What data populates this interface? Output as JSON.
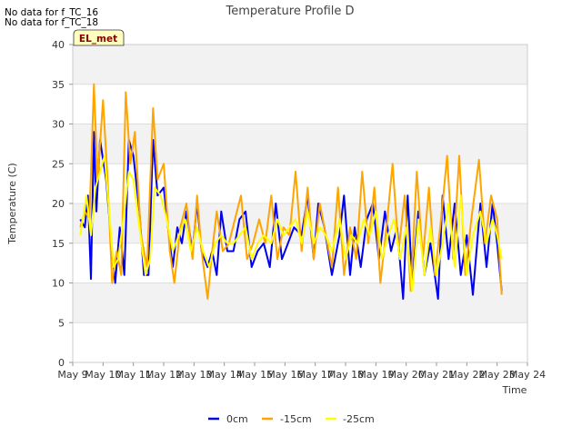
{
  "no_data_messages": [
    "No data for f_TC_16",
    "No data for f_TC_18"
  ],
  "badge_label": "EL_met",
  "colors": {
    "0cm": "#0000ee",
    "-15cm": "#ffa500",
    "-25cm": "#ffff00",
    "badge_bg": "#ffffc0",
    "badge_text": "#8b0000"
  },
  "chart_data": {
    "type": "line",
    "title": "Temperature Profile D",
    "xlabel": "Time",
    "ylabel": "Temperature (C)",
    "xlim": [
      0,
      15
    ],
    "ylim": [
      0,
      40
    ],
    "yticks": [
      0,
      5,
      10,
      15,
      20,
      25,
      30,
      35,
      40
    ],
    "xtick_labels": [
      "May 9",
      "May 10",
      "May 11",
      "May 12",
      "May 13",
      "May 14",
      "May 15",
      "May 16",
      "May 17",
      "May 18",
      "May 19",
      "May 20",
      "May 21",
      "May 22",
      "May 23",
      "May 24"
    ],
    "grid": true,
    "legend_position": "bottom-center",
    "x_units_note": "x is days since May 9 00:00",
    "series": [
      {
        "name": "0cm",
        "color": "#0000ee",
        "points": [
          [
            0.25,
            18
          ],
          [
            0.4,
            17
          ],
          [
            0.5,
            21
          ],
          [
            0.6,
            10.5
          ],
          [
            0.7,
            29
          ],
          [
            0.78,
            19
          ],
          [
            0.9,
            28
          ],
          [
            1.1,
            23
          ],
          [
            1.3,
            14
          ],
          [
            1.4,
            10
          ],
          [
            1.55,
            17
          ],
          [
            1.7,
            11
          ],
          [
            1.85,
            28
          ],
          [
            2.0,
            26
          ],
          [
            2.2,
            19
          ],
          [
            2.35,
            11
          ],
          [
            2.5,
            11
          ],
          [
            2.65,
            28
          ],
          [
            2.8,
            21
          ],
          [
            3.0,
            22
          ],
          [
            3.2,
            15
          ],
          [
            3.3,
            12
          ],
          [
            3.45,
            17
          ],
          [
            3.6,
            15
          ],
          [
            3.75,
            19
          ],
          [
            3.95,
            14
          ],
          [
            4.1,
            20
          ],
          [
            4.25,
            14
          ],
          [
            4.45,
            12
          ],
          [
            4.6,
            14
          ],
          [
            4.75,
            11
          ],
          [
            4.9,
            19
          ],
          [
            5.1,
            14
          ],
          [
            5.3,
            14
          ],
          [
            5.5,
            18
          ],
          [
            5.7,
            19
          ],
          [
            5.9,
            12
          ],
          [
            6.1,
            14
          ],
          [
            6.3,
            15
          ],
          [
            6.5,
            12
          ],
          [
            6.7,
            20
          ],
          [
            6.9,
            13
          ],
          [
            7.1,
            15
          ],
          [
            7.3,
            17
          ],
          [
            7.55,
            16
          ],
          [
            7.75,
            21
          ],
          [
            7.95,
            13
          ],
          [
            8.1,
            20
          ],
          [
            8.3,
            17
          ],
          [
            8.55,
            11
          ],
          [
            8.8,
            16
          ],
          [
            8.95,
            21
          ],
          [
            9.15,
            11
          ],
          [
            9.3,
            17
          ],
          [
            9.5,
            12
          ],
          [
            9.7,
            18
          ],
          [
            9.9,
            20
          ],
          [
            10.1,
            13
          ],
          [
            10.3,
            19
          ],
          [
            10.5,
            14
          ],
          [
            10.7,
            17
          ],
          [
            10.9,
            8
          ],
          [
            11.05,
            21
          ],
          [
            11.2,
            10
          ],
          [
            11.4,
            19
          ],
          [
            11.6,
            11
          ],
          [
            11.8,
            15
          ],
          [
            12.05,
            8
          ],
          [
            12.2,
            21
          ],
          [
            12.4,
            13
          ],
          [
            12.6,
            20
          ],
          [
            12.8,
            11
          ],
          [
            13.0,
            16
          ],
          [
            13.2,
            8.5
          ],
          [
            13.45,
            20
          ],
          [
            13.65,
            12
          ],
          [
            13.85,
            20
          ],
          [
            14.0,
            15
          ],
          [
            14.15,
            9
          ]
        ]
      },
      {
        "name": "-15cm",
        "color": "#ffa500",
        "points": [
          [
            0.25,
            17
          ],
          [
            0.4,
            19
          ],
          [
            0.55,
            18
          ],
          [
            0.7,
            35
          ],
          [
            0.82,
            23
          ],
          [
            1.0,
            33
          ],
          [
            1.15,
            23
          ],
          [
            1.3,
            10
          ],
          [
            1.45,
            14
          ],
          [
            1.6,
            11
          ],
          [
            1.75,
            34
          ],
          [
            1.9,
            25
          ],
          [
            2.05,
            29
          ],
          [
            2.25,
            16
          ],
          [
            2.45,
            12
          ],
          [
            2.65,
            32
          ],
          [
            2.8,
            23
          ],
          [
            3.0,
            25
          ],
          [
            3.2,
            14
          ],
          [
            3.35,
            10
          ],
          [
            3.55,
            17
          ],
          [
            3.75,
            20
          ],
          [
            3.95,
            13
          ],
          [
            4.1,
            21
          ],
          [
            4.25,
            14
          ],
          [
            4.45,
            8
          ],
          [
            4.6,
            14
          ],
          [
            4.75,
            19
          ],
          [
            4.95,
            14
          ],
          [
            5.15,
            15
          ],
          [
            5.35,
            18
          ],
          [
            5.55,
            21
          ],
          [
            5.75,
            13
          ],
          [
            5.95,
            15
          ],
          [
            6.15,
            18
          ],
          [
            6.35,
            15
          ],
          [
            6.55,
            21
          ],
          [
            6.75,
            13
          ],
          [
            6.95,
            17
          ],
          [
            7.15,
            16
          ],
          [
            7.35,
            24
          ],
          [
            7.55,
            14
          ],
          [
            7.75,
            22
          ],
          [
            7.95,
            13
          ],
          [
            8.15,
            20
          ],
          [
            8.35,
            16
          ],
          [
            8.55,
            12
          ],
          [
            8.75,
            22
          ],
          [
            8.95,
            11
          ],
          [
            9.15,
            17
          ],
          [
            9.35,
            13
          ],
          [
            9.55,
            24
          ],
          [
            9.75,
            15
          ],
          [
            9.95,
            22
          ],
          [
            10.15,
            10
          ],
          [
            10.35,
            17
          ],
          [
            10.55,
            25
          ],
          [
            10.75,
            14
          ],
          [
            10.95,
            21
          ],
          [
            11.15,
            9
          ],
          [
            11.35,
            24
          ],
          [
            11.55,
            13
          ],
          [
            11.75,
            22
          ],
          [
            11.95,
            11
          ],
          [
            12.15,
            18
          ],
          [
            12.35,
            26
          ],
          [
            12.55,
            13
          ],
          [
            12.75,
            26
          ],
          [
            12.95,
            11
          ],
          [
            13.15,
            18
          ],
          [
            13.4,
            25.5
          ],
          [
            13.6,
            15
          ],
          [
            13.8,
            21
          ],
          [
            14.0,
            18
          ],
          [
            14.15,
            8.5
          ]
        ]
      },
      {
        "name": "-25cm",
        "color": "#ffff00",
        "points": [
          [
            0.25,
            16
          ],
          [
            0.45,
            21
          ],
          [
            0.6,
            16
          ],
          [
            0.75,
            22
          ],
          [
            0.9,
            24
          ],
          [
            1.05,
            26
          ],
          [
            1.2,
            19
          ],
          [
            1.35,
            12
          ],
          [
            1.5,
            13
          ],
          [
            1.7,
            19
          ],
          [
            1.85,
            24
          ],
          [
            2.0,
            23
          ],
          [
            2.2,
            17
          ],
          [
            2.4,
            11
          ],
          [
            2.55,
            13
          ],
          [
            2.7,
            22
          ],
          [
            2.9,
            21
          ],
          [
            3.1,
            18
          ],
          [
            3.3,
            14
          ],
          [
            3.5,
            16
          ],
          [
            3.7,
            18
          ],
          [
            3.9,
            14
          ],
          [
            4.1,
            17
          ],
          [
            4.3,
            14
          ],
          [
            4.5,
            12
          ],
          [
            4.7,
            15
          ],
          [
            4.9,
            16
          ],
          [
            5.1,
            15
          ],
          [
            5.3,
            15
          ],
          [
            5.5,
            16
          ],
          [
            5.7,
            17
          ],
          [
            5.9,
            13
          ],
          [
            6.1,
            15
          ],
          [
            6.3,
            16
          ],
          [
            6.55,
            15
          ],
          [
            6.75,
            18
          ],
          [
            6.95,
            16
          ],
          [
            7.15,
            17
          ],
          [
            7.35,
            18
          ],
          [
            7.55,
            15
          ],
          [
            7.75,
            19
          ],
          [
            7.95,
            15
          ],
          [
            8.15,
            17
          ],
          [
            8.35,
            16
          ],
          [
            8.55,
            14
          ],
          [
            8.8,
            18
          ],
          [
            9.0,
            13
          ],
          [
            9.2,
            16
          ],
          [
            9.4,
            15
          ],
          [
            9.6,
            18
          ],
          [
            9.8,
            16
          ],
          [
            10.0,
            19
          ],
          [
            10.2,
            13
          ],
          [
            10.4,
            16
          ],
          [
            10.6,
            18
          ],
          [
            10.8,
            13
          ],
          [
            11.0,
            17
          ],
          [
            11.2,
            9
          ],
          [
            11.4,
            18
          ],
          [
            11.6,
            11
          ],
          [
            11.8,
            17
          ],
          [
            12.0,
            11
          ],
          [
            12.2,
            15
          ],
          [
            12.4,
            20
          ],
          [
            12.6,
            12
          ],
          [
            12.8,
            21
          ],
          [
            13.0,
            11
          ],
          [
            13.2,
            16
          ],
          [
            13.45,
            19
          ],
          [
            13.65,
            15
          ],
          [
            13.85,
            18
          ],
          [
            14.0,
            16
          ],
          [
            14.15,
            13
          ]
        ]
      }
    ]
  }
}
